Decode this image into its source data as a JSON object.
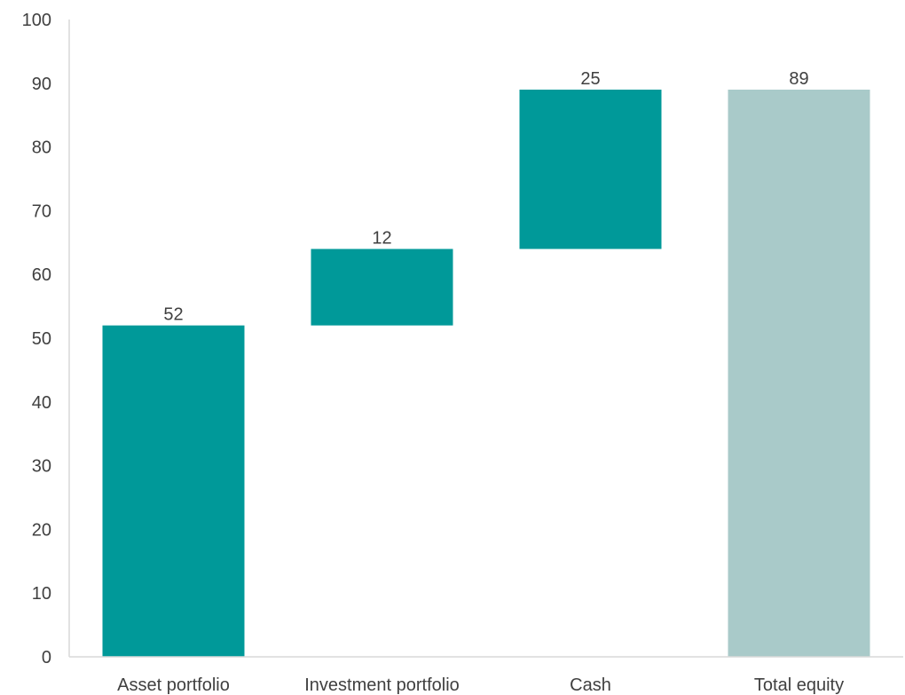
{
  "chart_data": {
    "type": "bar",
    "subtype": "waterfall",
    "title": "",
    "xlabel": "",
    "ylabel": "",
    "ylim": [
      0,
      100
    ],
    "yticks": [
      0,
      10,
      20,
      30,
      40,
      50,
      60,
      70,
      80,
      90,
      100
    ],
    "grid": false,
    "legend": "none",
    "categories": [
      "Asset portfolio",
      "Investment portfolio",
      "Cash",
      "Total equity"
    ],
    "bars": [
      {
        "category": "Asset portfolio",
        "base": 0,
        "value": 52,
        "label": "52",
        "kind": "increase"
      },
      {
        "category": "Investment portfolio",
        "base": 52,
        "value": 12,
        "label": "12",
        "kind": "increase"
      },
      {
        "category": "Cash",
        "base": 64,
        "value": 25,
        "label": "25",
        "kind": "increase"
      },
      {
        "category": "Total equity",
        "base": 0,
        "value": 89,
        "label": "89",
        "kind": "total"
      }
    ],
    "colors": {
      "increase": "#009999",
      "total": "#a9cac9",
      "text": "#404040",
      "axis": "#d9d9d9"
    }
  }
}
